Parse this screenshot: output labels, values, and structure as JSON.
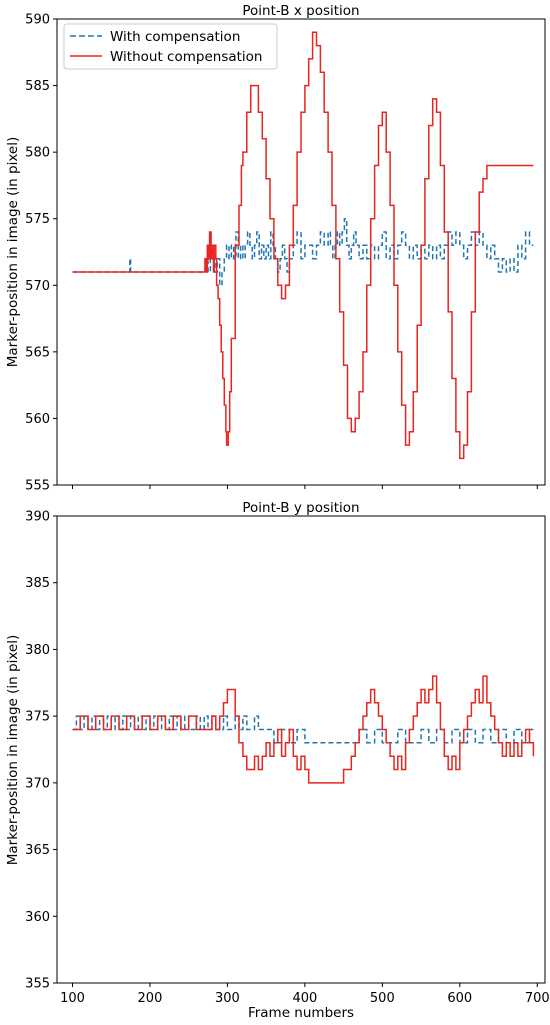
{
  "figure": {
    "shared_xlabel": "Frame numbers"
  },
  "chart_data": [
    {
      "type": "line",
      "title": "Point-B x position",
      "xlabel": "",
      "ylabel": "Marker-position in image (in pixel)",
      "xlim": [
        80,
        710
      ],
      "ylim": [
        555,
        590
      ],
      "xticks": [
        100,
        200,
        300,
        400,
        500,
        600,
        700
      ],
      "xtick_labels_shown": false,
      "yticks": [
        555,
        560,
        565,
        570,
        575,
        580,
        585,
        590
      ],
      "grid": false,
      "legend_position": "top-left",
      "series": [
        {
          "name": "With compensation",
          "color": "#1f77b4",
          "style": "dashed",
          "x": [
            100,
            174,
            174,
            175,
            176,
            270,
            272,
            275,
            278,
            281,
            284,
            287,
            290,
            293,
            296,
            299,
            302,
            305,
            308,
            311,
            314,
            317,
            320,
            323,
            326,
            329,
            332,
            335,
            338,
            341,
            344,
            347,
            350,
            353,
            356,
            359,
            362,
            365,
            368,
            371,
            374,
            377,
            380,
            385,
            390,
            395,
            400,
            405,
            410,
            415,
            420,
            425,
            430,
            433,
            436,
            439,
            442,
            445,
            448,
            451,
            454,
            457,
            460,
            463,
            466,
            470,
            475,
            480,
            485,
            490,
            495,
            500,
            505,
            510,
            515,
            520,
            525,
            530,
            535,
            540,
            545,
            550,
            555,
            560,
            565,
            570,
            575,
            580,
            585,
            590,
            595,
            600,
            605,
            610,
            615,
            620,
            625,
            630,
            635,
            640,
            645,
            650,
            655,
            660,
            665,
            670,
            675,
            680,
            685,
            690,
            695
          ],
          "y": [
            571,
            571,
            572,
            571,
            571,
            571,
            572,
            571,
            573,
            572,
            571,
            572,
            570,
            571,
            572,
            573,
            572,
            573,
            572,
            574,
            572,
            573,
            572,
            573,
            574,
            573,
            572,
            573,
            574,
            572,
            573,
            572,
            573,
            572,
            574,
            573,
            572,
            571,
            572,
            573,
            572,
            571,
            572,
            573,
            574,
            572,
            573,
            573,
            572,
            573,
            574,
            573,
            574,
            573,
            572,
            573,
            574,
            573,
            574,
            575,
            573,
            572,
            573,
            574,
            573,
            572,
            573,
            572,
            573,
            572,
            573,
            574,
            572,
            573,
            572,
            573,
            574,
            573,
            572,
            573,
            572,
            573,
            572,
            573,
            572,
            573,
            572,
            573,
            574,
            573,
            574,
            573,
            572,
            573,
            574,
            573,
            574,
            573,
            572,
            573,
            572,
            571,
            572,
            571,
            572,
            571,
            573,
            572,
            574,
            573,
            573
          ]
        },
        {
          "name": "Without compensation",
          "color": "#e8251e",
          "style": "solid",
          "x": [
            100,
            270,
            271,
            273,
            274,
            276,
            277,
            279,
            280,
            282,
            283,
            285,
            286,
            288,
            290,
            292,
            294,
            296,
            298,
            299,
            301,
            303,
            305,
            310,
            315,
            318,
            320,
            325,
            330,
            335,
            340,
            345,
            350,
            355,
            360,
            365,
            370,
            375,
            380,
            385,
            390,
            395,
            400,
            405,
            410,
            415,
            420,
            425,
            430,
            435,
            440,
            445,
            450,
            455,
            460,
            465,
            470,
            475,
            480,
            485,
            490,
            495,
            500,
            505,
            510,
            515,
            520,
            525,
            530,
            535,
            540,
            545,
            550,
            555,
            560,
            565,
            570,
            575,
            580,
            585,
            590,
            595,
            600,
            605,
            610,
            615,
            620,
            625,
            630,
            635,
            640,
            645,
            650,
            655,
            660,
            665,
            670,
            675,
            680,
            685,
            690,
            695
          ],
          "y": [
            571,
            571,
            572,
            571,
            573,
            572,
            574,
            572,
            573,
            571,
            573,
            572,
            570,
            569,
            567,
            565,
            563,
            561,
            559,
            558,
            559,
            562,
            566,
            573,
            576,
            579,
            580,
            583,
            585,
            585,
            583,
            581,
            578,
            575,
            572,
            570,
            569,
            570,
            573,
            576,
            580,
            583,
            585,
            587,
            589,
            588,
            586,
            583,
            580,
            576,
            572,
            568,
            564,
            560,
            559,
            560,
            562,
            565,
            570,
            575,
            579,
            582,
            583,
            580,
            576,
            570,
            565,
            561,
            558,
            559,
            562,
            567,
            573,
            578,
            582,
            584,
            583,
            579,
            574,
            568,
            563,
            559,
            557,
            558,
            562,
            568,
            574,
            577,
            578,
            579,
            579,
            579,
            579,
            579,
            579,
            579,
            579,
            579,
            579,
            579,
            579,
            579
          ]
        }
      ]
    },
    {
      "type": "line",
      "title": "Point-B y position",
      "xlabel": "Frame numbers",
      "ylabel": "Marker-position in image (in pixel)",
      "xlim": [
        80,
        710
      ],
      "ylim": [
        355,
        390
      ],
      "xticks": [
        100,
        200,
        300,
        400,
        500,
        600,
        700
      ],
      "xtick_labels_shown": true,
      "yticks": [
        355,
        360,
        365,
        370,
        375,
        380,
        385,
        390
      ],
      "grid": false,
      "legend_position": "none",
      "series": [
        {
          "name": "With compensation",
          "color": "#1f77b4",
          "style": "dashed",
          "x": [
            100,
            105,
            110,
            115,
            120,
            125,
            130,
            135,
            140,
            145,
            150,
            155,
            160,
            165,
            170,
            175,
            180,
            185,
            190,
            195,
            200,
            205,
            210,
            215,
            220,
            225,
            230,
            235,
            240,
            245,
            250,
            255,
            260,
            265,
            270,
            275,
            280,
            285,
            290,
            295,
            300,
            305,
            310,
            315,
            320,
            325,
            330,
            335,
            340,
            345,
            350,
            360,
            370,
            380,
            390,
            400,
            410,
            420,
            430,
            440,
            450,
            460,
            470,
            480,
            490,
            500,
            510,
            520,
            530,
            540,
            550,
            560,
            570,
            580,
            590,
            600,
            610,
            620,
            630,
            640,
            650,
            660,
            670,
            680,
            690,
            695
          ],
          "y": [
            374,
            375,
            374,
            375,
            374,
            375,
            374,
            375,
            374,
            375,
            374,
            375,
            374,
            375,
            374,
            375,
            374,
            375,
            374,
            375,
            374,
            375,
            374,
            375,
            374,
            375,
            374,
            375,
            374,
            375,
            374,
            374,
            375,
            374,
            375,
            374,
            375,
            374,
            374,
            375,
            374,
            374,
            375,
            374,
            375,
            374,
            374,
            375,
            374,
            374,
            374,
            373,
            374,
            373,
            374,
            373,
            373,
            373,
            373,
            373,
            373,
            373,
            374,
            373,
            374,
            373,
            373,
            374,
            373,
            373,
            374,
            373,
            374,
            373,
            374,
            373,
            374,
            373,
            374,
            373,
            374,
            373,
            374,
            373,
            374,
            374
          ]
        },
        {
          "name": "Without compensation",
          "color": "#e8251e",
          "style": "solid",
          "x": [
            100,
            110,
            120,
            130,
            140,
            150,
            160,
            170,
            180,
            190,
            200,
            210,
            220,
            230,
            240,
            250,
            260,
            270,
            280,
            285,
            290,
            295,
            300,
            305,
            310,
            315,
            320,
            325,
            330,
            335,
            340,
            345,
            350,
            355,
            360,
            365,
            370,
            375,
            380,
            385,
            390,
            395,
            400,
            405,
            410,
            415,
            420,
            430,
            440,
            450,
            460,
            465,
            470,
            475,
            480,
            485,
            490,
            495,
            500,
            505,
            510,
            515,
            520,
            525,
            530,
            535,
            540,
            545,
            550,
            555,
            560,
            565,
            570,
            575,
            580,
            585,
            590,
            595,
            600,
            605,
            610,
            615,
            620,
            625,
            630,
            635,
            640,
            645,
            650,
            655,
            660,
            665,
            670,
            675,
            680,
            685,
            690,
            695
          ],
          "y": [
            374,
            375,
            374,
            375,
            374,
            375,
            374,
            375,
            374,
            375,
            374,
            375,
            374,
            375,
            374,
            375,
            374,
            374,
            375,
            374,
            375,
            376,
            377,
            377,
            375,
            373,
            372,
            371,
            371,
            372,
            371,
            372,
            373,
            372,
            373,
            374,
            372,
            373,
            374,
            372,
            371,
            372,
            371,
            370,
            370,
            370,
            370,
            370,
            370,
            371,
            372,
            373,
            374,
            375,
            376,
            377,
            376,
            375,
            374,
            373,
            372,
            371,
            372,
            371,
            373,
            374,
            375,
            376,
            377,
            376,
            377,
            378,
            376,
            374,
            372,
            371,
            372,
            371,
            373,
            374,
            375,
            376,
            377,
            376,
            378,
            376,
            375,
            374,
            373,
            372,
            373,
            372,
            373,
            372,
            373,
            374,
            373,
            372
          ]
        }
      ]
    }
  ]
}
